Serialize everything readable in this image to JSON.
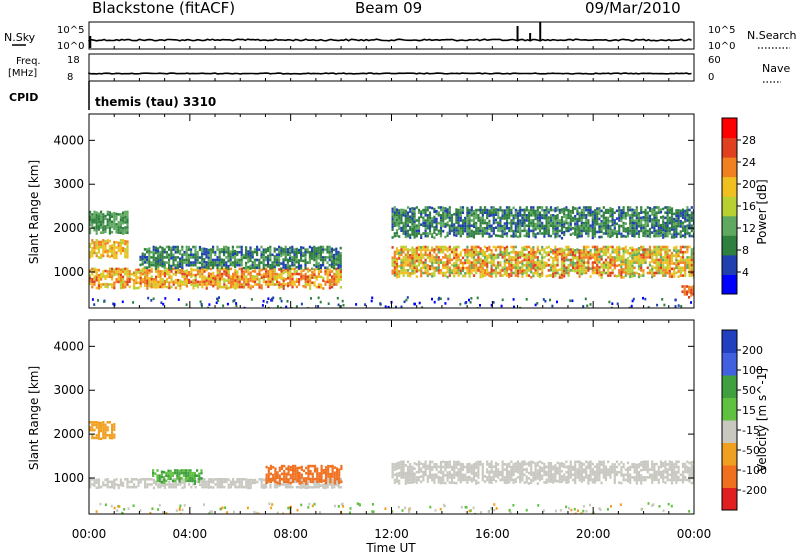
{
  "header": {
    "station": "Blackstone (fitACF)",
    "beam": "Beam 09",
    "date": "09/Mar/2010"
  },
  "top_panels": {
    "nsky_label": "N.Sky",
    "nsky_ticks": [
      "10^5",
      "10^0"
    ],
    "nsearch_label": "N.Search",
    "nsearch_ticks": [
      "10^5",
      "10^0"
    ],
    "freq_label_1": "Freq.",
    "freq_label_2": "[MHz]",
    "freq_ticks": [
      "18",
      "8"
    ],
    "nave_label": "Nave",
    "nave_ticks": [
      "60",
      "0"
    ],
    "cpid_label": "CPID",
    "cpid_value": "themis (tau) 3310"
  },
  "chart_data": [
    {
      "type": "heatmap",
      "title": "Power",
      "ylabel": "Slant Range [km]",
      "xlabel": "Time UT",
      "x_ticks": [
        "00:00",
        "04:00",
        "08:00",
        "12:00",
        "16:00",
        "20:00",
        "00:00"
      ],
      "y_ticks": [
        "1000",
        "2000",
        "3000",
        "4000"
      ],
      "xlim": [
        0,
        24
      ],
      "ylim": [
        180,
        4600
      ],
      "colorbar": {
        "label": "Power [dB]",
        "ticks": [
          "4",
          "8",
          "12",
          "16",
          "20",
          "24",
          "28"
        ],
        "colors": [
          "#0000ff",
          "#2040b0",
          "#2f7f3f",
          "#5fa85f",
          "#b8d030",
          "#f0c020",
          "#f08020",
          "#e04020",
          "#ff0000"
        ]
      },
      "features": [
        {
          "time_range": [
            0.0,
            1.5
          ],
          "range_km": [
            1350,
            1750
          ],
          "power": "16-24"
        },
        {
          "time_range": [
            0.0,
            1.5
          ],
          "range_km": [
            1900,
            2400
          ],
          "power": "8-12"
        },
        {
          "time_range": [
            0.0,
            10.0
          ],
          "range_km": [
            650,
            1100
          ],
          "power": "16-28"
        },
        {
          "time_range": [
            2.0,
            10.0
          ],
          "range_km": [
            1100,
            1600
          ],
          "power": "4-12"
        },
        {
          "time_range": [
            12.0,
            24.0
          ],
          "range_km": [
            900,
            1600
          ],
          "power": "12-28"
        },
        {
          "time_range": [
            12.0,
            24.0
          ],
          "range_km": [
            1800,
            2500
          ],
          "power": "4-12"
        },
        {
          "time_range": [
            23.5,
            24.0
          ],
          "range_km": [
            450,
            700
          ],
          "power": "24-28"
        }
      ]
    },
    {
      "type": "heatmap",
      "title": "Velocity",
      "ylabel": "Slant Range [km]",
      "xlabel": "Time UT",
      "x_ticks": [
        "00:00",
        "04:00",
        "08:00",
        "12:00",
        "16:00",
        "20:00",
        "00:00"
      ],
      "y_ticks": [
        "1000",
        "2000",
        "3000",
        "4000"
      ],
      "xlim": [
        0,
        24
      ],
      "ylim": [
        180,
        4600
      ],
      "colorbar": {
        "label": "Velocity [m s^-1]",
        "ticks": [
          "200",
          "100",
          "50",
          "15",
          "-15",
          "-50",
          "-100",
          "-200"
        ],
        "colors": [
          "#2040c0",
          "#4060e0",
          "#40a040",
          "#60c040",
          "#c8c8c0",
          "#f0a020",
          "#f07020",
          "#e02020"
        ]
      },
      "features": [
        {
          "time_range": [
            0.0,
            10.0
          ],
          "range_km": [
            800,
            1000
          ],
          "velocity": "-15 to 15"
        },
        {
          "time_range": [
            2.5,
            4.5
          ],
          "range_km": [
            900,
            1200
          ],
          "velocity": "15 to 50"
        },
        {
          "time_range": [
            7.0,
            10.0
          ],
          "range_km": [
            900,
            1300
          ],
          "velocity": "-50 to -100"
        },
        {
          "time_range": [
            0.0,
            1.0
          ],
          "range_km": [
            1900,
            2300
          ],
          "velocity": "-50"
        },
        {
          "time_range": [
            12.0,
            24.0
          ],
          "range_km": [
            900,
            1400
          ],
          "velocity": "-15 to 15"
        }
      ]
    }
  ]
}
